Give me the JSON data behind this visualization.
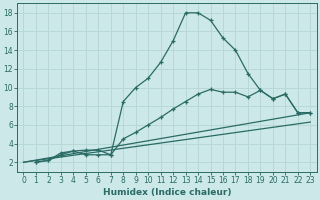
{
  "xlabel": "Humidex (Indice chaleur)",
  "ylabel": "",
  "xlim": [
    -0.5,
    23.5
  ],
  "ylim": [
    1,
    19
  ],
  "xticks": [
    0,
    1,
    2,
    3,
    4,
    5,
    6,
    7,
    8,
    9,
    10,
    11,
    12,
    13,
    14,
    15,
    16,
    17,
    18,
    19,
    20,
    21,
    22,
    23
  ],
  "yticks": [
    2,
    4,
    6,
    8,
    10,
    12,
    14,
    16,
    18
  ],
  "bg_color": "#cce8e8",
  "line_color": "#2a6b65",
  "grid_color": "#b8d8d8",
  "curves": [
    {
      "x": [
        1,
        2,
        3,
        4,
        5,
        6,
        7,
        8,
        9,
        10,
        11,
        12,
        13,
        14,
        15,
        16,
        17,
        18,
        19,
        20,
        21,
        22,
        23
      ],
      "y": [
        2.0,
        2.2,
        3.0,
        3.2,
        2.8,
        2.8,
        2.8,
        8.5,
        10.0,
        11.0,
        12.7,
        15.0,
        18.0,
        18.0,
        17.2,
        15.3,
        14.0,
        11.5,
        9.7,
        8.8,
        9.3,
        7.3,
        7.3
      ],
      "marker": "+"
    },
    {
      "x": [
        1,
        2,
        3,
        4,
        5,
        6,
        7,
        8,
        9,
        10,
        11,
        12,
        13,
        14,
        15,
        16,
        17,
        18,
        19,
        20,
        21,
        22,
        23
      ],
      "y": [
        2.0,
        2.2,
        2.8,
        3.2,
        3.3,
        3.3,
        2.8,
        4.5,
        5.2,
        6.0,
        6.8,
        7.7,
        8.5,
        9.3,
        9.8,
        9.5,
        9.5,
        9.0,
        9.7,
        8.8,
        9.3,
        7.3,
        7.3
      ],
      "marker": "+"
    },
    {
      "x": [
        0,
        23
      ],
      "y": [
        2.0,
        7.3
      ],
      "marker": null
    },
    {
      "x": [
        0,
        23
      ],
      "y": [
        2.0,
        6.3
      ],
      "marker": null
    }
  ]
}
